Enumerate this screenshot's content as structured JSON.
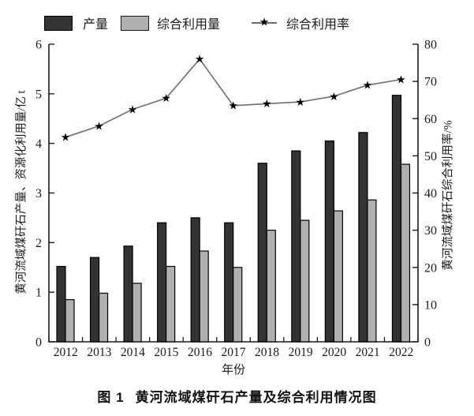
{
  "figure": {
    "caption_label": "图 1",
    "caption_title": "黄河流域煤矸石产量及综合利用情况图"
  },
  "colors": {
    "production_fill": "#333333",
    "utilization_fill": "#b0b0b0",
    "bar_stroke": "#000000",
    "line_color": "#6e6e6e",
    "marker_color": "#000000",
    "axis_color": "#1a1a1a",
    "text_color": "#1a1a1a",
    "background": "#ffffff"
  },
  "legend": {
    "items": [
      {
        "swatch": "production",
        "label": "产量"
      },
      {
        "swatch": "utilization",
        "label": "综合利用量"
      },
      {
        "swatch": "rate-line",
        "label": "综合利用率"
      }
    ],
    "star_glyph": "★"
  },
  "chart_data": {
    "type": "bar",
    "title": "",
    "categories": [
      "2012",
      "2013",
      "2014",
      "2015",
      "2016",
      "2017",
      "2018",
      "2019",
      "2020",
      "2021",
      "2022"
    ],
    "series": [
      {
        "name": "产量",
        "type": "bar",
        "axis": "left",
        "values": [
          1.52,
          1.7,
          1.93,
          2.4,
          2.5,
          2.4,
          3.6,
          3.85,
          4.05,
          4.22,
          4.97
        ]
      },
      {
        "name": "综合利用量",
        "type": "bar",
        "axis": "left",
        "values": [
          0.85,
          0.98,
          1.18,
          1.52,
          1.83,
          1.5,
          2.25,
          2.45,
          2.64,
          2.86,
          3.58
        ]
      },
      {
        "name": "综合利用率",
        "type": "line",
        "marker": "star",
        "axis": "right",
        "values": [
          55,
          58,
          62.5,
          65.5,
          76,
          63.5,
          64,
          64.5,
          66,
          69,
          70.5
        ]
      }
    ],
    "left_axis": {
      "title": "黄河流域煤矸石产量、资源化利用量/亿 t",
      "min": 0,
      "max": 6,
      "ticks": [
        0,
        1,
        2,
        3,
        4,
        5,
        6
      ]
    },
    "right_axis": {
      "title": "黄河流域煤矸石综合利用率/%",
      "min": 0,
      "max": 80,
      "ticks": [
        0,
        10,
        20,
        30,
        40,
        50,
        60,
        70,
        80
      ]
    },
    "x_axis": {
      "title": "年份"
    },
    "grid": false,
    "legend_position": "top"
  }
}
